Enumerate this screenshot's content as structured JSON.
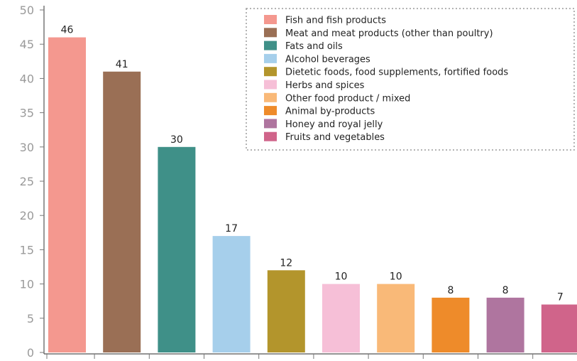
{
  "chart_data": {
    "type": "bar",
    "categories": [
      "Fish and fish products",
      "Meat and meat products (other than poultry)",
      "Fats and oils",
      "Alcohol beverages",
      "Dietetic foods, food supplements, fortified foods",
      "Herbs and spices",
      "Other food product / mixed",
      "Animal by-products",
      "Honey and royal jelly",
      "Fruits and vegetables"
    ],
    "values": [
      46,
      41,
      30,
      17,
      12,
      10,
      10,
      8,
      8,
      7
    ],
    "data_labels": [
      "46",
      "41",
      "30",
      "17",
      "12",
      "10",
      "10",
      "8",
      "8",
      "7"
    ],
    "colors": [
      "#f4988f",
      "#9a6f55",
      "#3f9088",
      "#a6cfeb",
      "#b3952c",
      "#f6bfd7",
      "#f9b978",
      "#ee8b2a",
      "#af759f",
      "#d0648a"
    ],
    "ylim": [
      0,
      50
    ],
    "yticks": [
      "0",
      "5",
      "10",
      "15",
      "20",
      "25",
      "30",
      "35",
      "40",
      "45",
      "50"
    ],
    "legend_position": "top-right",
    "grid": false
  }
}
